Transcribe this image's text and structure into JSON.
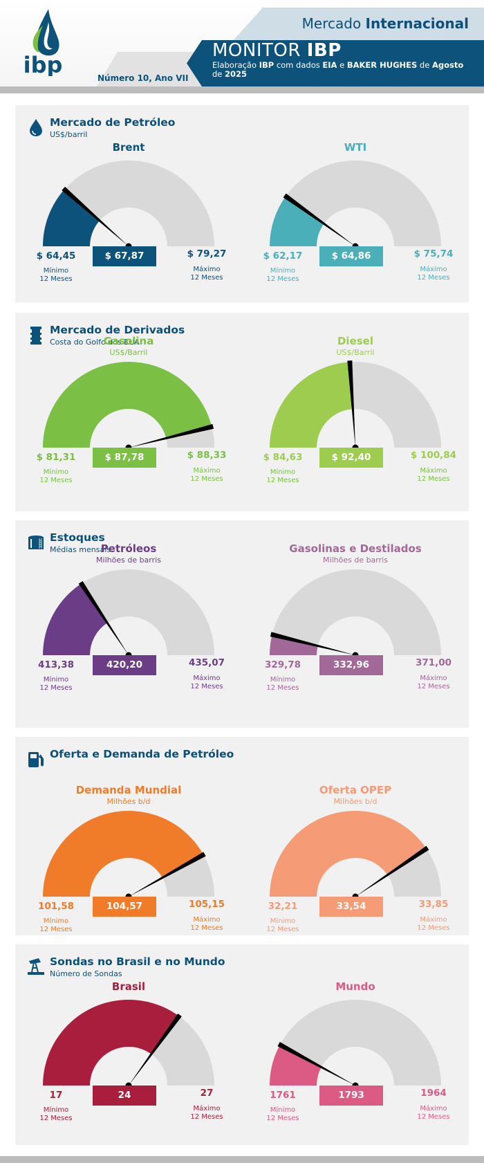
{
  "header": {
    "brand": "ibp",
    "section_regular": "Mercado",
    "section_bold": "Internacional",
    "title_regular": "MONITOR",
    "title_bold": "IBP",
    "subtitle_parts": [
      {
        "t": "Elaboração ",
        "b": false
      },
      {
        "t": "IBP",
        "b": true
      },
      {
        "t": " com dados ",
        "b": false
      },
      {
        "t": "EIA",
        "b": true
      },
      {
        "t": " e ",
        "b": false
      },
      {
        "t": "BAKER HUGHES",
        "b": true
      },
      {
        "t": " de ",
        "b": false
      },
      {
        "t": "Agosto",
        "b": true
      },
      {
        "t": " de ",
        "b": false
      },
      {
        "t": "2025",
        "b": true
      }
    ],
    "edition": "Número 10, Ano VII"
  },
  "labels": {
    "min_label": "Mínimo",
    "max_label": "Máximo",
    "period": "12 Meses"
  },
  "sections": [
    {
      "id": "petroleo",
      "icon": "oil-drop-icon",
      "title": "Mercado de Petróleo",
      "subtitle": "US$/barril",
      "gauges": [
        {
          "name": "Brent",
          "unit": "",
          "color": "#0c527a",
          "min_text": "$ 64,45",
          "value_text": "$ 67,87",
          "max_text": "$ 79,27",
          "min_label_color": "#0c4f79"
        },
        {
          "name": "WTI",
          "unit": "",
          "color": "#4aafb9",
          "min_text": "$ 62,17",
          "value_text": "$ 64,86",
          "max_text": "$ 75,74",
          "min_label_color": "#4aafb9"
        }
      ]
    },
    {
      "id": "derivados",
      "icon": "oil-barrel-icon",
      "title": "Mercado de Derivados",
      "subtitle": "Costa do Golfo dos EUA",
      "gauges": [
        {
          "name": "Gasolina",
          "unit": "US$/Barril",
          "color": "#7bbf45",
          "min_text": "$ 81,31",
          "value_text": "$ 87,78",
          "max_text": "$ 88,33",
          "min_label_color": "#7bbf45"
        },
        {
          "name": "Diesel",
          "unit": "US$/Barril",
          "color": "#9dcc4e",
          "min_text": "$ 84,63",
          "value_text": "$ 92,40",
          "max_text": "$ 100,84",
          "min_label_color": "#7bbf45"
        }
      ]
    },
    {
      "id": "estoques",
      "icon": "storage-tank-icon",
      "title": "Estoques",
      "subtitle": "Médias mensais",
      "gauges": [
        {
          "name": "Petróleos",
          "unit": "Milhões de barris",
          "color": "#6b3d86",
          "min_text": "413,38",
          "value_text": "420,20",
          "max_text": "435,07",
          "min_label_color": "#6b3d86"
        },
        {
          "name": "Gasolinas e Destilados",
          "unit": "Milhões de barris",
          "color": "#a26898",
          "min_text": "329,78",
          "value_text": "332,96",
          "max_text": "371,00",
          "min_label_color": "#a26898"
        }
      ]
    },
    {
      "id": "oferta",
      "icon": "fuel-pump-icon",
      "title": "Oferta e Demanda de Petróleo",
      "subtitle": "",
      "gauges": [
        {
          "name": "Demanda Mundial",
          "unit": "Milhões b/d",
          "color": "#f07b28",
          "min_text": "101,58",
          "value_text": "104,57",
          "max_text": "105,15",
          "min_label_color": "#f07b28"
        },
        {
          "name": "Oferta OPEP",
          "unit": "Milhões b/d",
          "color": "#f59b76",
          "min_text": "32,21",
          "value_text": "33,54",
          "max_text": "33,85",
          "min_label_color": "#f59b76"
        }
      ]
    },
    {
      "id": "sondas",
      "icon": "oil-pumpjack-icon",
      "title": "Sondas no Brasil e no Mundo",
      "subtitle": "Número de Sondas",
      "gauges": [
        {
          "name": "Brasil",
          "unit": "",
          "color": "#a91e3c",
          "min_text": "17",
          "value_text": "24",
          "max_text": "27",
          "min_label_color": "#a91e3c"
        },
        {
          "name": "Mundo",
          "unit": "",
          "color": "#dc5b84",
          "min_text": "1761",
          "value_text": "1793",
          "max_text": "1964",
          "min_label_color": "#dc5b84"
        }
      ]
    }
  ],
  "chart_data": [
    {
      "type": "gauge",
      "title": "Brent",
      "unit": "US$/barril",
      "min": 64.45,
      "value": 67.87,
      "max": 79.27
    },
    {
      "type": "gauge",
      "title": "WTI",
      "unit": "US$/barril",
      "min": 62.17,
      "value": 64.86,
      "max": 75.74
    },
    {
      "type": "gauge",
      "title": "Gasolina",
      "unit": "US$/Barril",
      "min": 81.31,
      "value": 87.78,
      "max": 88.33
    },
    {
      "type": "gauge",
      "title": "Diesel",
      "unit": "US$/Barril",
      "min": 84.63,
      "value": 92.4,
      "max": 100.84
    },
    {
      "type": "gauge",
      "title": "Petróleos",
      "unit": "Milhões de barris",
      "min": 413.38,
      "value": 420.2,
      "max": 435.07
    },
    {
      "type": "gauge",
      "title": "Gasolinas e Destilados",
      "unit": "Milhões de barris",
      "min": 329.78,
      "value": 332.96,
      "max": 371.0
    },
    {
      "type": "gauge",
      "title": "Demanda Mundial",
      "unit": "Milhões b/d",
      "min": 101.58,
      "value": 104.57,
      "max": 105.15
    },
    {
      "type": "gauge",
      "title": "Oferta OPEP",
      "unit": "Milhões b/d",
      "min": 32.21,
      "value": 33.54,
      "max": 33.85
    },
    {
      "type": "gauge",
      "title": "Brasil",
      "unit": "Número de Sondas",
      "min": 17,
      "value": 24,
      "max": 27
    },
    {
      "type": "gauge",
      "title": "Mundo",
      "unit": "Número de Sondas",
      "min": 1761,
      "value": 1793,
      "max": 1964
    }
  ]
}
